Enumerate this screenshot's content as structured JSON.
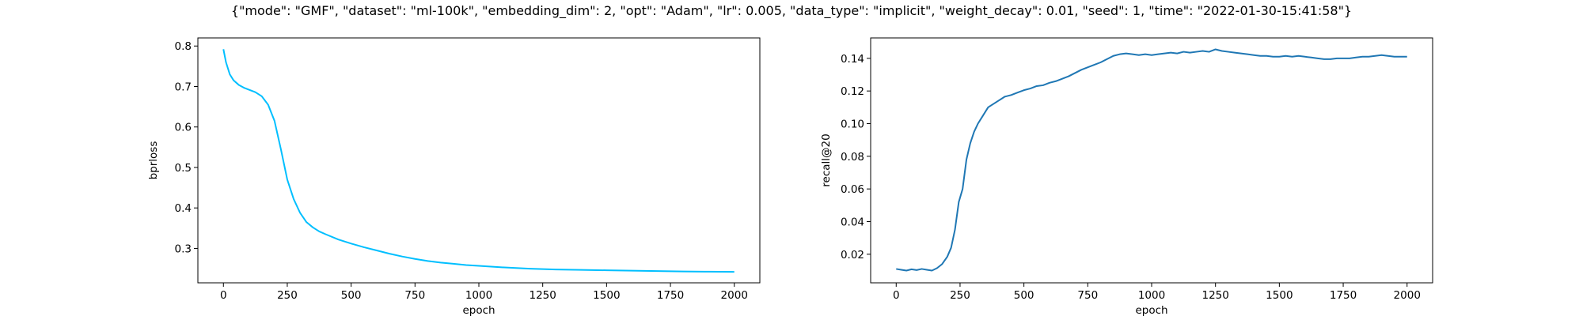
{
  "figure": {
    "suptitle": "{\"mode\": \"GMF\", \"dataset\": \"ml-100k\", \"embedding_dim\": 2, \"opt\": \"Adam\", \"lr\": 0.005, \"data_type\": \"implicit\", \"weight_decay\": 0.01, \"seed\": 1, \"time\": \"2022-01-30-15:41:58\"}"
  },
  "chart_data": [
    {
      "type": "line",
      "title": "",
      "xlabel": "epoch",
      "ylabel": "bprloss",
      "xlim": [
        -100,
        2100
      ],
      "ylim": [
        0.215,
        0.82
      ],
      "xticks": [
        0,
        250,
        500,
        750,
        1000,
        1250,
        1500,
        1750,
        2000
      ],
      "yticks": [
        0.3,
        0.4,
        0.5,
        0.6,
        0.7,
        0.8
      ],
      "xtick_labels": [
        "0",
        "250",
        "500",
        "750",
        "1000",
        "1250",
        "1500",
        "1750",
        "2000"
      ],
      "ytick_labels": [
        "0.3",
        "0.4",
        "0.5",
        "0.6",
        "0.7",
        "0.8"
      ],
      "grid": false,
      "color": "#00bfff",
      "series": [
        {
          "x": [
            0,
            10,
            25,
            40,
            60,
            80,
            100,
            125,
            150,
            175,
            200,
            225,
            250,
            275,
            300,
            325,
            350,
            375,
            400,
            450,
            500,
            550,
            600,
            650,
            700,
            750,
            800,
            850,
            900,
            950,
            1000,
            1100,
            1200,
            1300,
            1400,
            1500,
            1600,
            1700,
            1800,
            1900,
            2000
          ],
          "y": [
            0.792,
            0.76,
            0.73,
            0.715,
            0.704,
            0.697,
            0.692,
            0.686,
            0.676,
            0.655,
            0.615,
            0.545,
            0.47,
            0.422,
            0.388,
            0.365,
            0.352,
            0.342,
            0.335,
            0.322,
            0.312,
            0.303,
            0.295,
            0.287,
            0.28,
            0.274,
            0.269,
            0.265,
            0.262,
            0.259,
            0.257,
            0.253,
            0.25,
            0.248,
            0.247,
            0.246,
            0.245,
            0.244,
            0.243,
            0.2425,
            0.242
          ]
        }
      ]
    },
    {
      "type": "line",
      "title": "",
      "xlabel": "epoch",
      "ylabel": "recall@20",
      "xlim": [
        -100,
        2100
      ],
      "ylim": [
        0.0025,
        0.1525
      ],
      "xticks": [
        0,
        250,
        500,
        750,
        1000,
        1250,
        1500,
        1750,
        2000
      ],
      "yticks": [
        0.02,
        0.04,
        0.06,
        0.08,
        0.1,
        0.12,
        0.14
      ],
      "xtick_labels": [
        "0",
        "250",
        "500",
        "750",
        "1000",
        "1250",
        "1500",
        "1750",
        "2000"
      ],
      "ytick_labels": [
        "0.02",
        "0.04",
        "0.06",
        "0.08",
        "0.10",
        "0.12",
        "0.14"
      ],
      "grid": false,
      "color": "#1f77b4",
      "series": [
        {
          "x": [
            0,
            20,
            40,
            60,
            80,
            100,
            120,
            140,
            160,
            180,
            200,
            215,
            230,
            245,
            260,
            275,
            290,
            305,
            320,
            340,
            360,
            380,
            400,
            425,
            450,
            475,
            500,
            525,
            550,
            575,
            600,
            625,
            650,
            675,
            700,
            725,
            750,
            775,
            800,
            825,
            850,
            875,
            900,
            925,
            950,
            975,
            1000,
            1025,
            1050,
            1075,
            1100,
            1125,
            1150,
            1175,
            1200,
            1225,
            1250,
            1275,
            1300,
            1325,
            1350,
            1375,
            1400,
            1425,
            1450,
            1475,
            1500,
            1525,
            1550,
            1575,
            1600,
            1625,
            1650,
            1675,
            1700,
            1725,
            1750,
            1775,
            1800,
            1825,
            1850,
            1875,
            1900,
            1925,
            1950,
            1975,
            2000
          ],
          "y": [
            0.011,
            0.0105,
            0.01,
            0.0108,
            0.0103,
            0.011,
            0.0105,
            0.01,
            0.0115,
            0.014,
            0.0185,
            0.024,
            0.035,
            0.052,
            0.06,
            0.078,
            0.088,
            0.095,
            0.1,
            0.105,
            0.11,
            0.112,
            0.114,
            0.1165,
            0.1175,
            0.119,
            0.1205,
            0.1215,
            0.123,
            0.1235,
            0.125,
            0.126,
            0.1275,
            0.129,
            0.131,
            0.133,
            0.1345,
            0.136,
            0.1375,
            0.1395,
            0.1415,
            0.1425,
            0.143,
            0.1425,
            0.142,
            0.1425,
            0.142,
            0.1425,
            0.143,
            0.1435,
            0.143,
            0.144,
            0.1435,
            0.144,
            0.1445,
            0.144,
            0.1455,
            0.1445,
            0.144,
            0.1435,
            0.143,
            0.1425,
            0.142,
            0.1415,
            0.1415,
            0.141,
            0.141,
            0.1415,
            0.141,
            0.1415,
            0.141,
            0.1405,
            0.14,
            0.1395,
            0.1395,
            0.14,
            0.14,
            0.14,
            0.1405,
            0.141,
            0.141,
            0.1415,
            0.142,
            0.1415,
            0.141,
            0.141,
            0.141
          ]
        }
      ]
    }
  ]
}
